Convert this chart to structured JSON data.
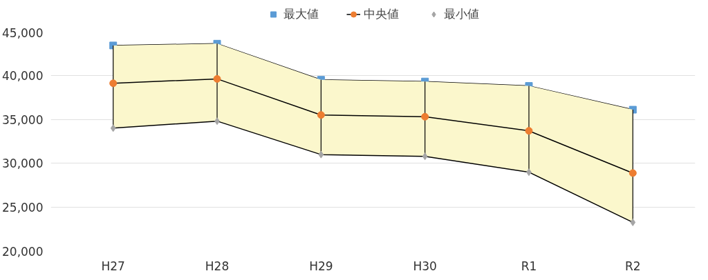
{
  "chart_data": {
    "type": "line",
    "categories": [
      "H27",
      "H28",
      "H29",
      "H30",
      "R1",
      "R2"
    ],
    "series": [
      {
        "name": "最大値",
        "type": "line",
        "marker": "square",
        "color": "#5b9bd5",
        "values": [
          43400,
          43600,
          39500,
          39300,
          38800,
          36100
        ]
      },
      {
        "name": "中央値",
        "marker": "circle",
        "color": "#ed7d31",
        "values": [
          39100,
          39600,
          35500,
          35300,
          33700,
          28900
        ],
        "errors": [
          [
            34000,
            43400
          ],
          [
            34800,
            43600
          ],
          [
            31000,
            39500
          ],
          [
            30800,
            39300
          ],
          [
            29000,
            38800
          ],
          [
            23300,
            36100
          ]
        ],
        "lower": [
          34000,
          34800,
          31000,
          30800,
          29000,
          23300
        ],
        "upper": [
          43400,
          43600,
          39500,
          39300,
          38800,
          36100
        ]
      },
      {
        "name": "最小値",
        "type": "line",
        "marker": "diamond",
        "color": "#a5a5a5",
        "values": [
          34000,
          34800,
          31000,
          30800,
          29000,
          23300
        ]
      }
    ],
    "ylim": [
      20000,
      45000
    ],
    "yticks": [
      {
        "value": 20000,
        "label": "20,000"
      },
      {
        "value": 25000,
        "label": "25,000"
      },
      {
        "value": 30000,
        "label": "30,000"
      },
      {
        "value": 35000,
        "label": "35,000"
      },
      {
        "value": 40000,
        "label": "40,000"
      },
      {
        "value": 45000,
        "label": "45,000"
      }
    ],
    "grid": "y",
    "legend": "top"
  }
}
